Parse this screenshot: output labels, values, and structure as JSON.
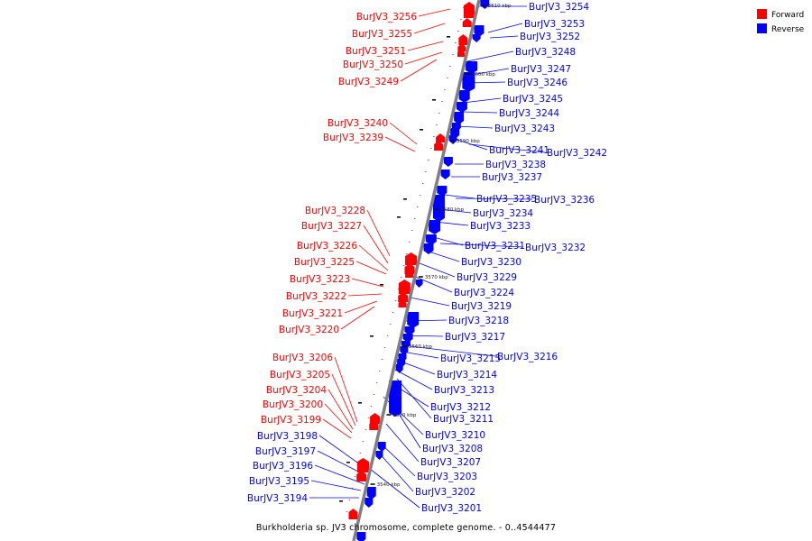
{
  "caption": "Burkholderia sp. JV3 chromosome, complete genome. - 0..4544477",
  "legend": [
    {
      "label": "Forward",
      "color": "#ff0000"
    },
    {
      "label": "Reverse",
      "color": "#0000ff"
    }
  ],
  "colors": {
    "forward": "#ff0000",
    "reverse": "#0000ff",
    "backbone": "#808080"
  },
  "scale_ticks": [
    {
      "label": "3610 kbp"
    },
    {
      "label": "3600 kbp"
    },
    {
      "label": "3590 kbp"
    },
    {
      "label": "3580 kbp"
    },
    {
      "label": "3570 kbp"
    },
    {
      "label": "3560 kbp"
    },
    {
      "label": "3550 kbp"
    },
    {
      "label": "3540 kbp"
    }
  ],
  "forward_genes": [
    {
      "label": "BurJV3_3256"
    },
    {
      "label": "BurJV3_3255"
    },
    {
      "label": "BurJV3_3251"
    },
    {
      "label": "BurJV3_3250"
    },
    {
      "label": "BurJV3_3249"
    },
    {
      "label": "BurJV3_3240"
    },
    {
      "label": "BurJV3_3239"
    },
    {
      "label": "BurJV3_3228"
    },
    {
      "label": "BurJV3_3227"
    },
    {
      "label": "BurJV3_3226"
    },
    {
      "label": "BurJV3_3225"
    },
    {
      "label": "BurJV3_3223"
    },
    {
      "label": "BurJV3_3222"
    },
    {
      "label": "BurJV3_3221"
    },
    {
      "label": "BurJV3_3220"
    },
    {
      "label": "BurJV3_3206"
    },
    {
      "label": "BurJV3_3205"
    },
    {
      "label": "BurJV3_3204"
    },
    {
      "label": "BurJV3_3200"
    },
    {
      "label": "BurJV3_3199"
    }
  ],
  "reverse_genes_left": [
    {
      "label": "BurJV3_3198"
    },
    {
      "label": "BurJV3_3197"
    },
    {
      "label": "BurJV3_3196"
    },
    {
      "label": "BurJV3_3195"
    },
    {
      "label": "BurJV3_3194"
    }
  ],
  "reverse_genes": [
    {
      "label": "BurJV3_3254"
    },
    {
      "label": "BurJV3_3253"
    },
    {
      "label": "BurJV3_3252"
    },
    {
      "label": "BurJV3_3248"
    },
    {
      "label": "BurJV3_3247"
    },
    {
      "label": "BurJV3_3246"
    },
    {
      "label": "BurJV3_3245"
    },
    {
      "label": "BurJV3_3244"
    },
    {
      "label": "BurJV3_3243"
    },
    {
      "label": "BurJV3_3241"
    },
    {
      "label": "BurJV3_3242"
    },
    {
      "label": "BurJV3_3238"
    },
    {
      "label": "BurJV3_3237"
    },
    {
      "label": "BurJV3_3235"
    },
    {
      "label": "BurJV3_3236"
    },
    {
      "label": "BurJV3_3234"
    },
    {
      "label": "BurJV3_3233"
    },
    {
      "label": "BurJV3_3231"
    },
    {
      "label": "BurJV3_3232"
    },
    {
      "label": "BurJV3_3230"
    },
    {
      "label": "BurJV3_3229"
    },
    {
      "label": "BurJV3_3224"
    },
    {
      "label": "BurJV3_3219"
    },
    {
      "label": "BurJV3_3218"
    },
    {
      "label": "BurJV3_3217"
    },
    {
      "label": "BurJV3_3215"
    },
    {
      "label": "BurJV3_3216"
    },
    {
      "label": "BurJV3_3214"
    },
    {
      "label": "BurJV3_3213"
    },
    {
      "label": "BurJV3_3212"
    },
    {
      "label": "BurJV3_3211"
    },
    {
      "label": "BurJV3_3210"
    },
    {
      "label": "BurJV3_3208"
    },
    {
      "label": "BurJV3_3207"
    },
    {
      "label": "BurJV3_3203"
    },
    {
      "label": "BurJV3_3202"
    },
    {
      "label": "BurJV3_3201"
    }
  ]
}
